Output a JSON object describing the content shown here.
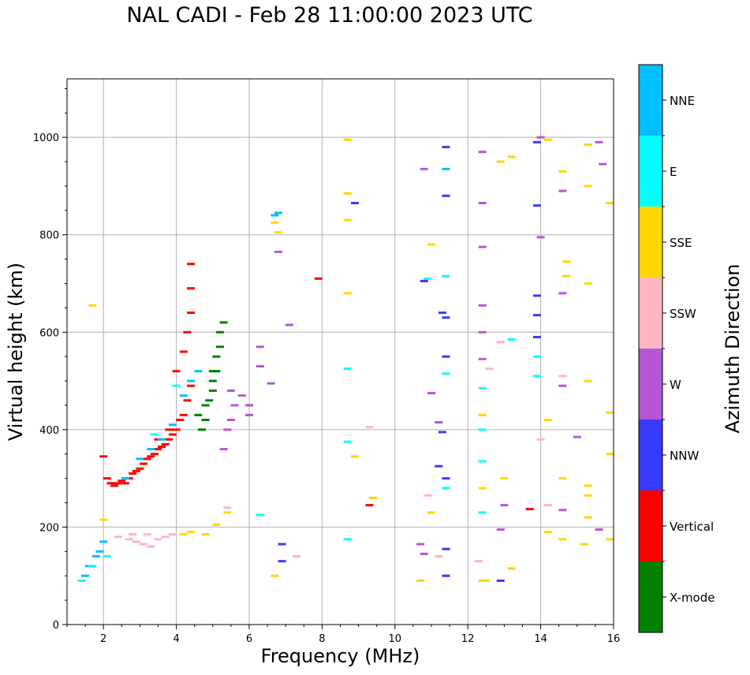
{
  "chart_data": {
    "type": "scatter",
    "title": "NAL CADI - Feb 28 11:00:00 2023 UTC",
    "xlabel": "Frequency (MHz)",
    "ylabel": "Virtual height (km)",
    "xlim": [
      1,
      16
    ],
    "ylim": [
      0,
      1120
    ],
    "xticks": [
      2,
      4,
      6,
      8,
      10,
      12,
      14,
      16
    ],
    "yticks": [
      0,
      200,
      400,
      600,
      800,
      1000
    ],
    "grid": true,
    "colorbar": {
      "label": "Azimuth Direction",
      "categories": [
        {
          "name": "X-mode",
          "color": "#008000"
        },
        {
          "name": "Vertical",
          "color": "#ff0000"
        },
        {
          "name": "NNW",
          "color": "#3a3aff"
        },
        {
          "name": "W",
          "color": "#b656d6"
        },
        {
          "name": "SSW",
          "color": "#ffb6c1"
        },
        {
          "name": "SSE",
          "color": "#ffd700"
        },
        {
          "name": "E",
          "color": "#00ffff"
        },
        {
          "name": "NNE",
          "color": "#00bfff"
        }
      ]
    },
    "series": [
      {
        "name": "Vertical",
        "points": [
          [
            2.1,
            300
          ],
          [
            2.2,
            290
          ],
          [
            2.3,
            285
          ],
          [
            2.4,
            290
          ],
          [
            2.5,
            295
          ],
          [
            2.6,
            290
          ],
          [
            2.7,
            300
          ],
          [
            2.8,
            310
          ],
          [
            2.9,
            315
          ],
          [
            3.0,
            320
          ],
          [
            3.1,
            330
          ],
          [
            3.2,
            340
          ],
          [
            3.3,
            345
          ],
          [
            3.4,
            350
          ],
          [
            3.5,
            360
          ],
          [
            3.6,
            365
          ],
          [
            3.7,
            370
          ],
          [
            3.8,
            380
          ],
          [
            3.9,
            390
          ],
          [
            4.0,
            400
          ],
          [
            4.1,
            420
          ],
          [
            4.2,
            430
          ],
          [
            4.3,
            460
          ],
          [
            4.4,
            490
          ],
          [
            4.0,
            520
          ],
          [
            4.2,
            560
          ],
          [
            4.3,
            600
          ],
          [
            4.4,
            640
          ],
          [
            4.4,
            690
          ],
          [
            4.4,
            740
          ],
          [
            7.9,
            710
          ],
          [
            9.3,
            245
          ],
          [
            13.7,
            237
          ],
          [
            2.0,
            345
          ],
          [
            3.5,
            380
          ],
          [
            3.8,
            400
          ]
        ]
      },
      {
        "name": "X-mode",
        "points": [
          [
            4.7,
            400
          ],
          [
            4.8,
            420
          ],
          [
            4.8,
            450
          ],
          [
            4.9,
            460
          ],
          [
            5.0,
            480
          ],
          [
            5.0,
            500
          ],
          [
            5.1,
            520
          ],
          [
            5.1,
            550
          ],
          [
            5.2,
            570
          ],
          [
            5.2,
            600
          ],
          [
            5.3,
            620
          ],
          [
            4.6,
            430
          ],
          [
            5.0,
            520
          ]
        ]
      },
      {
        "name": "NNE",
        "points": [
          [
            1.5,
            100
          ],
          [
            1.6,
            120
          ],
          [
            1.8,
            140
          ],
          [
            1.9,
            150
          ],
          [
            2.0,
            170
          ],
          [
            2.6,
            300
          ],
          [
            3.0,
            340
          ],
          [
            3.3,
            360
          ],
          [
            3.6,
            380
          ],
          [
            3.9,
            410
          ],
          [
            4.2,
            470
          ],
          [
            4.4,
            500
          ],
          [
            4.6,
            520
          ],
          [
            6.7,
            840
          ],
          [
            6.8,
            845
          ],
          [
            11.4,
            935
          ]
        ]
      },
      {
        "name": "E",
        "points": [
          [
            1.7,
            120
          ],
          [
            2.1,
            140
          ],
          [
            1.4,
            90
          ],
          [
            3.4,
            390
          ],
          [
            4.0,
            490
          ],
          [
            6.3,
            225
          ],
          [
            8.7,
            525
          ],
          [
            8.7,
            375
          ],
          [
            8.7,
            175
          ],
          [
            11.4,
            280
          ],
          [
            11.4,
            515
          ],
          [
            12.4,
            485
          ],
          [
            12.4,
            335
          ],
          [
            12.4,
            230
          ],
          [
            12.4,
            400
          ],
          [
            13.9,
            550
          ],
          [
            13.9,
            510
          ],
          [
            13.2,
            585
          ],
          [
            11.4,
            715
          ],
          [
            10.9,
            710
          ]
        ]
      },
      {
        "name": "NNW",
        "points": [
          [
            11.4,
            980
          ],
          [
            11.4,
            880
          ],
          [
            11.3,
            640
          ],
          [
            11.4,
            550
          ],
          [
            11.4,
            300
          ],
          [
            11.4,
            155
          ],
          [
            11.4,
            100
          ],
          [
            13.9,
            990
          ],
          [
            13.9,
            860
          ],
          [
            13.9,
            675
          ],
          [
            13.9,
            635
          ],
          [
            13.9,
            590
          ],
          [
            12.9,
            90
          ],
          [
            8.9,
            865
          ],
          [
            6.9,
            130
          ],
          [
            6.9,
            165
          ],
          [
            11.2,
            325
          ],
          [
            11.3,
            395
          ],
          [
            10.8,
            705
          ],
          [
            11.4,
            630
          ]
        ]
      },
      {
        "name": "W",
        "points": [
          [
            5.3,
            360
          ],
          [
            5.4,
            400
          ],
          [
            5.5,
            420
          ],
          [
            5.6,
            450
          ],
          [
            5.8,
            470
          ],
          [
            6.0,
            450
          ],
          [
            6.0,
            430
          ],
          [
            6.3,
            570
          ],
          [
            6.3,
            530
          ],
          [
            6.6,
            495
          ],
          [
            6.8,
            765
          ],
          [
            7.1,
            615
          ],
          [
            5.5,
            480
          ],
          [
            12.4,
            970
          ],
          [
            12.4,
            865
          ],
          [
            12.4,
            775
          ],
          [
            12.4,
            655
          ],
          [
            12.4,
            600
          ],
          [
            12.4,
            545
          ],
          [
            14.0,
            1000
          ],
          [
            14.0,
            795
          ],
          [
            14.6,
            890
          ],
          [
            14.6,
            680
          ],
          [
            14.6,
            490
          ],
          [
            15.0,
            385
          ],
          [
            15.6,
            990
          ],
          [
            15.7,
            945
          ],
          [
            10.8,
            935
          ],
          [
            11.0,
            475
          ],
          [
            11.2,
            415
          ],
          [
            13.0,
            245
          ],
          [
            12.9,
            195
          ],
          [
            14.6,
            235
          ],
          [
            15.6,
            195
          ],
          [
            10.7,
            165
          ],
          [
            10.8,
            145
          ]
        ]
      },
      {
        "name": "SSW",
        "points": [
          [
            2.7,
            175
          ],
          [
            2.9,
            170
          ],
          [
            3.1,
            165
          ],
          [
            3.3,
            160
          ],
          [
            3.5,
            175
          ],
          [
            3.7,
            180
          ],
          [
            3.9,
            185
          ],
          [
            2.4,
            180
          ],
          [
            2.8,
            185
          ],
          [
            3.2,
            185
          ],
          [
            5.4,
            240
          ],
          [
            7.3,
            140
          ],
          [
            9.3,
            405
          ],
          [
            12.6,
            525
          ],
          [
            12.9,
            580
          ],
          [
            14.6,
            510
          ],
          [
            14.0,
            380
          ],
          [
            14.2,
            245
          ],
          [
            10.9,
            265
          ],
          [
            11.2,
            140
          ],
          [
            12.3,
            130
          ]
        ]
      },
      {
        "name": "SSE",
        "points": [
          [
            1.7,
            655
          ],
          [
            2.0,
            215
          ],
          [
            4.2,
            185
          ],
          [
            4.4,
            190
          ],
          [
            4.8,
            185
          ],
          [
            5.1,
            205
          ],
          [
            5.4,
            230
          ],
          [
            6.7,
            825
          ],
          [
            6.8,
            805
          ],
          [
            6.7,
            100
          ],
          [
            8.7,
            995
          ],
          [
            8.7,
            885
          ],
          [
            8.7,
            830
          ],
          [
            8.7,
            680
          ],
          [
            8.9,
            345
          ],
          [
            9.4,
            260
          ],
          [
            12.4,
            430
          ],
          [
            12.4,
            280
          ],
          [
            12.4,
            90
          ],
          [
            12.9,
            950
          ],
          [
            13.2,
            960
          ],
          [
            13.0,
            300
          ],
          [
            13.2,
            115
          ],
          [
            14.2,
            995
          ],
          [
            14.2,
            420
          ],
          [
            14.2,
            190
          ],
          [
            14.6,
            930
          ],
          [
            14.7,
            745
          ],
          [
            14.7,
            715
          ],
          [
            14.6,
            300
          ],
          [
            14.6,
            175
          ],
          [
            15.3,
            985
          ],
          [
            15.3,
            900
          ],
          [
            15.3,
            700
          ],
          [
            15.3,
            500
          ],
          [
            15.3,
            285
          ],
          [
            15.3,
            265
          ],
          [
            15.3,
            220
          ],
          [
            15.2,
            165
          ],
          [
            15.9,
            865
          ],
          [
            15.9,
            435
          ],
          [
            15.9,
            350
          ],
          [
            15.9,
            175
          ],
          [
            11.0,
            230
          ],
          [
            10.7,
            90
          ],
          [
            11.0,
            780
          ],
          [
            12.5,
            90
          ]
        ]
      }
    ]
  }
}
